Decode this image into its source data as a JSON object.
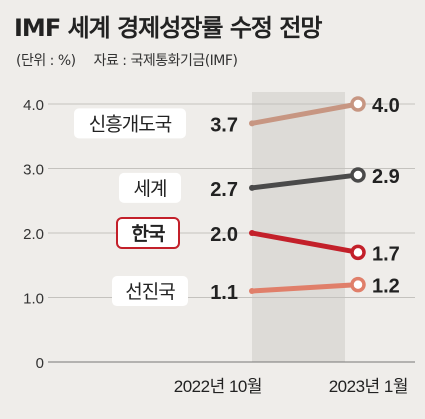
{
  "title": "IMF 세계 경제성장률 수정 전망",
  "unit_label": "(단위 : %)",
  "source_label": "자료 : 국제통화기금(IMF)",
  "colors": {
    "신흥개도국": "#c79682",
    "세계": "#4a4a4a",
    "한국": "#c3202a",
    "선진국": "#e07f6a",
    "highlight_band": "#dddbd7"
  },
  "chart_data": {
    "type": "line",
    "categories": [
      "2022년 10월",
      "2023년 1월"
    ],
    "ylim": [
      0,
      4.0
    ],
    "yticks": [
      "0",
      "1.0",
      "2.0",
      "3.0",
      "4.0"
    ],
    "grid": true,
    "series": [
      {
        "name": "신흥개도국",
        "values": [
          3.7,
          4.0
        ],
        "labels": [
          "3.7",
          "4.0"
        ]
      },
      {
        "name": "세계",
        "values": [
          2.7,
          2.9
        ],
        "labels": [
          "2.7",
          "2.9"
        ]
      },
      {
        "name": "한국",
        "values": [
          2.0,
          1.7
        ],
        "labels": [
          "2.0",
          "1.7"
        ],
        "highlight": true
      },
      {
        "name": "선진국",
        "values": [
          1.1,
          1.2
        ],
        "labels": [
          "1.1",
          "1.2"
        ]
      }
    ]
  }
}
